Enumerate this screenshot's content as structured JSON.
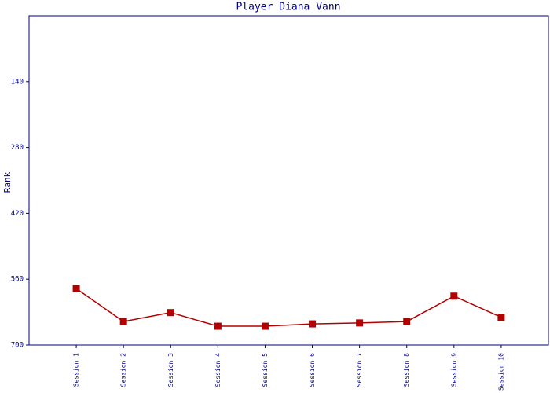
{
  "chart_data": {
    "type": "line",
    "title": "Player Diana Vann",
    "y_label": "Rank",
    "categories": [
      "Session 1",
      "Session 2",
      "Session 3",
      "Session 4",
      "Session 5",
      "Session 6",
      "Session 7",
      "Session 8",
      "Session 9",
      "Session 10"
    ],
    "series": [
      {
        "name": "Rank",
        "color": "#b30000",
        "values": [
          580,
          650,
          631,
          660,
          660,
          655,
          653,
          650,
          596,
          641
        ]
      }
    ],
    "ylim": [
      700,
      0
    ],
    "yticks": [
      140,
      280,
      420,
      560,
      700
    ],
    "grid": false
  }
}
